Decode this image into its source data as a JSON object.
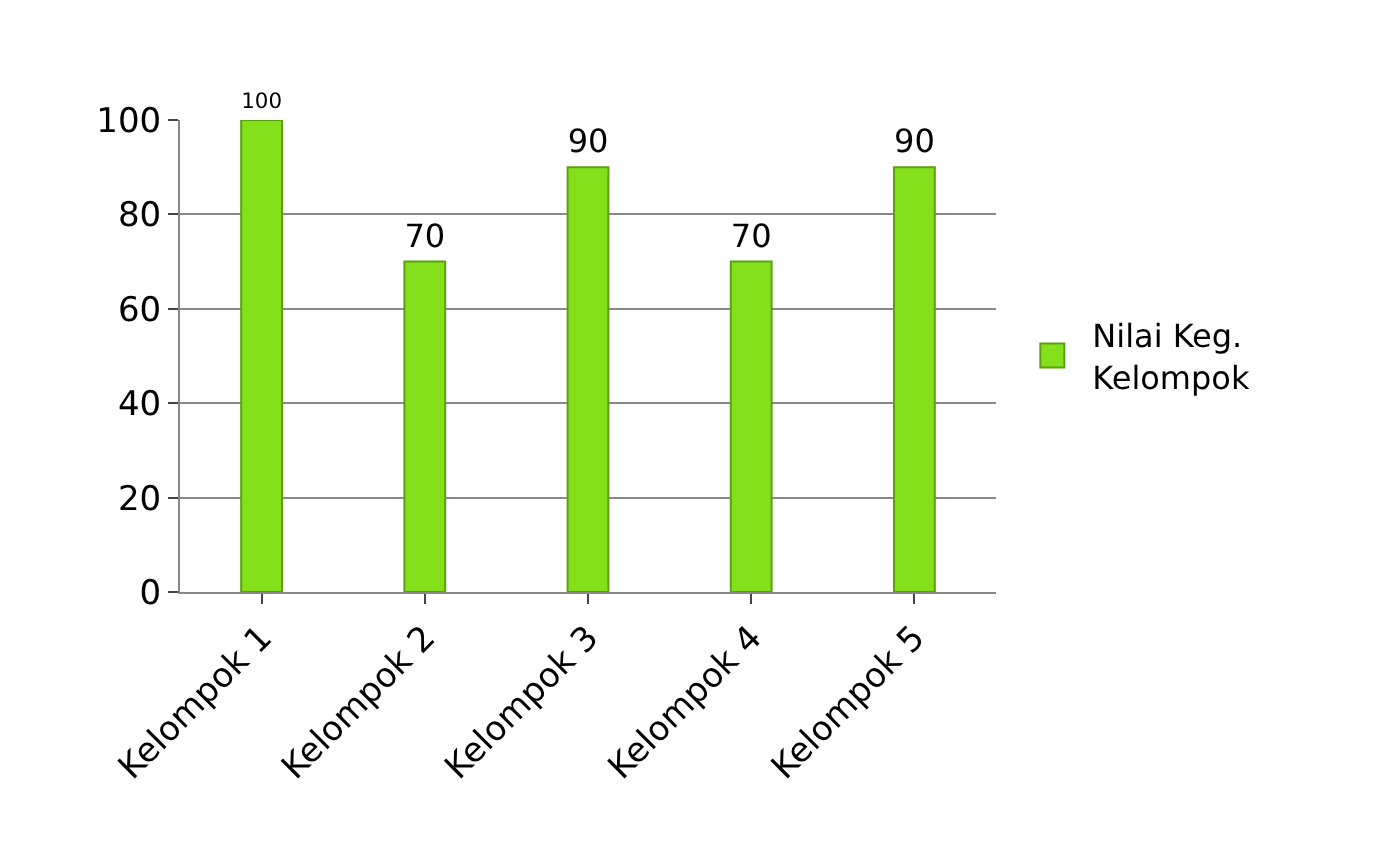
{
  "chart_data": {
    "type": "bar",
    "categories": [
      "Kelompok 1",
      "Kelompok 2",
      "Kelompok 3",
      "Kelompok 4",
      "Kelompok 5"
    ],
    "series": [
      {
        "name": "Nilai Keg. Kelompok",
        "color": "#84e01a",
        "values": [
          100,
          70,
          90,
          70,
          90
        ]
      }
    ],
    "ylim": [
      0,
      100
    ],
    "yticks": [
      0,
      20,
      40,
      60,
      80,
      100
    ],
    "grid": "y",
    "legend": "right",
    "data_labels": true
  }
}
